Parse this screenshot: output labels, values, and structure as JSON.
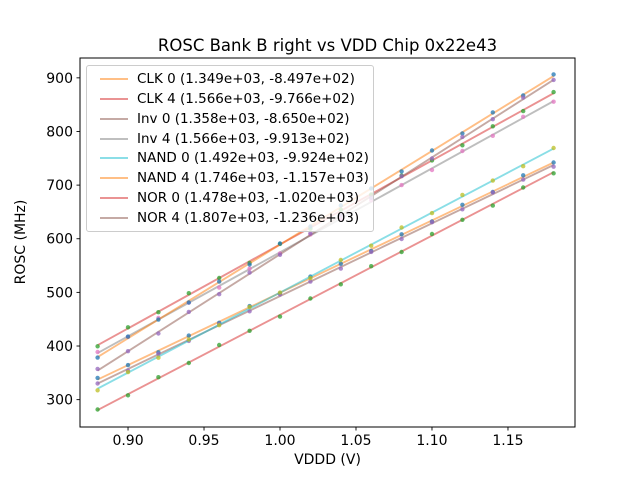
{
  "title": "ROSC Bank B right vs VDD Chip 0x22e43",
  "xlabel": "VDDD (V)",
  "ylabel": "ROSC (MHz)",
  "colors": {
    "background": "#ffffff",
    "axis": "#000000",
    "legend_border": "#cccccc",
    "text": "#000000"
  },
  "chart_data": {
    "type": "scatter",
    "subtype": "scatter points with linear fit lines, legend shows (slope, intercept) of each fit",
    "title": "ROSC Bank B right vs VDD Chip 0x22e43",
    "xlabel": "VDDD (V)",
    "ylabel": "ROSC (MHz)",
    "xlim": [
      0.8684,
      1.1941
    ],
    "ylim": [
      249,
      937
    ],
    "xticks": [
      0.9,
      0.95,
      1.0,
      1.05,
      1.1,
      1.15
    ],
    "xtick_labels": [
      "0.90",
      "0.95",
      "1.00",
      "1.05",
      "1.10",
      "1.15"
    ],
    "yticks": [
      300,
      400,
      500,
      600,
      700,
      800,
      900
    ],
    "ytick_labels": [
      "300",
      "400",
      "500",
      "600",
      "700",
      "800",
      "900"
    ],
    "grid": false,
    "legend_position": "upper left",
    "line_alpha": 0.5,
    "marker_alpha": 0.75,
    "x_range": {
      "start": 0.88,
      "end": 1.18,
      "step": 0.02
    },
    "series": [
      {
        "name": "CLK 0",
        "label": "CLK 0 (1.349e+03, -8.497e+02)",
        "slope": 1349,
        "intercept": -849.7,
        "line_color": "#ff7f0e",
        "marker_color": "#1f77b4"
      },
      {
        "name": "CLK 4",
        "label": "CLK 4 (1.566e+03, -9.766e+02)",
        "slope": 1566,
        "intercept": -976.6,
        "line_color": "#d62728",
        "marker_color": "#2ca02c"
      },
      {
        "name": "Inv 0",
        "label": "Inv 0 (1.358e+03, -8.650e+02)",
        "slope": 1358,
        "intercept": -865.0,
        "line_color": "#8c564b",
        "marker_color": "#9467bd"
      },
      {
        "name": "Inv 4",
        "label": "Inv 4 (1.566e+03, -9.913e+02)",
        "slope": 1566,
        "intercept": -991.3,
        "line_color": "#7f7f7f",
        "marker_color": "#e377c2"
      },
      {
        "name": "NAND 0",
        "label": "NAND 0 (1.492e+03, -9.924e+02)",
        "slope": 1492,
        "intercept": -992.4,
        "line_color": "#17becf",
        "marker_color": "#bcbd22"
      },
      {
        "name": "NAND 4",
        "label": "NAND 4 (1.746e+03, -1.157e+03)",
        "slope": 1746,
        "intercept": -1157.0,
        "line_color": "#ff7f0e",
        "marker_color": "#1f77b4"
      },
      {
        "name": "NOR 0",
        "label": "NOR 0 (1.478e+03, -1.020e+03)",
        "slope": 1478,
        "intercept": -1020.0,
        "line_color": "#d62728",
        "marker_color": "#2ca02c"
      },
      {
        "name": "NOR 4",
        "label": "NOR 4 (1.807e+03, -1.236e+03)",
        "slope": 1807,
        "intercept": -1236.0,
        "line_color": "#8c564b",
        "marker_color": "#9467bd"
      }
    ]
  }
}
